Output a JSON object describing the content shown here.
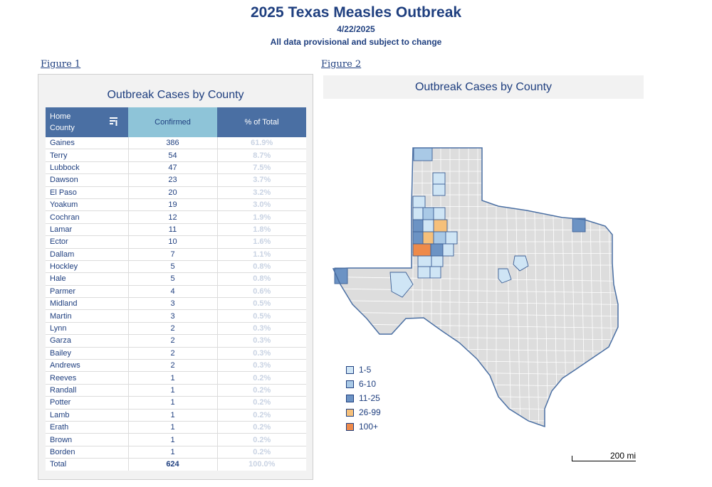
{
  "header": {
    "title": "2025 Texas Measles Outbreak",
    "date": "4/22/2025",
    "note": "All data provisional and subject to change"
  },
  "figure1": {
    "link": "Figure 1",
    "panel_title": "Outbreak Cases by County",
    "columns": {
      "county_line1": "Home",
      "county_line2": "County",
      "confirmed": "Confirmed",
      "pct": "% of Total"
    },
    "rows": [
      {
        "county": "Gaines",
        "confirmed": "386",
        "pct": "61.9%"
      },
      {
        "county": "Terry",
        "confirmed": "54",
        "pct": "8.7%"
      },
      {
        "county": "Lubbock",
        "confirmed": "47",
        "pct": "7.5%"
      },
      {
        "county": "Dawson",
        "confirmed": "23",
        "pct": "3.7%"
      },
      {
        "county": "El Paso",
        "confirmed": "20",
        "pct": "3.2%"
      },
      {
        "county": "Yoakum",
        "confirmed": "19",
        "pct": "3.0%"
      },
      {
        "county": "Cochran",
        "confirmed": "12",
        "pct": "1.9%"
      },
      {
        "county": "Lamar",
        "confirmed": "11",
        "pct": "1.8%"
      },
      {
        "county": "Ector",
        "confirmed": "10",
        "pct": "1.6%"
      },
      {
        "county": "Dallam",
        "confirmed": "7",
        "pct": "1.1%"
      },
      {
        "county": "Hockley",
        "confirmed": "5",
        "pct": "0.8%"
      },
      {
        "county": "Hale",
        "confirmed": "5",
        "pct": "0.8%"
      },
      {
        "county": "Parmer",
        "confirmed": "4",
        "pct": "0.6%"
      },
      {
        "county": "Midland",
        "confirmed": "3",
        "pct": "0.5%"
      },
      {
        "county": "Martin",
        "confirmed": "3",
        "pct": "0.5%"
      },
      {
        "county": "Lynn",
        "confirmed": "2",
        "pct": "0.3%"
      },
      {
        "county": "Garza",
        "confirmed": "2",
        "pct": "0.3%"
      },
      {
        "county": "Bailey",
        "confirmed": "2",
        "pct": "0.3%"
      },
      {
        "county": "Andrews",
        "confirmed": "2",
        "pct": "0.3%"
      },
      {
        "county": "Reeves",
        "confirmed": "1",
        "pct": "0.2%"
      },
      {
        "county": "Randall",
        "confirmed": "1",
        "pct": "0.2%"
      },
      {
        "county": "Potter",
        "confirmed": "1",
        "pct": "0.2%"
      },
      {
        "county": "Lamb",
        "confirmed": "1",
        "pct": "0.2%"
      },
      {
        "county": "Erath",
        "confirmed": "1",
        "pct": "0.2%"
      },
      {
        "county": "Brown",
        "confirmed": "1",
        "pct": "0.2%"
      },
      {
        "county": "Borden",
        "confirmed": "1",
        "pct": "0.2%"
      }
    ],
    "total": {
      "county": "Total",
      "confirmed": "624",
      "pct": "100.0%"
    }
  },
  "figure2": {
    "link": "Figure 2",
    "panel_title": "Outbreak Cases by County",
    "legend": [
      {
        "label": "1-5",
        "color": "#cfe5f5"
      },
      {
        "label": "6-10",
        "color": "#a9c9e6"
      },
      {
        "label": "11-25",
        "color": "#6c93c4"
      },
      {
        "label": "26-99",
        "color": "#f6c07a"
      },
      {
        "label": "100+",
        "color": "#ee8a4a"
      }
    ],
    "scale_label": "200 mi",
    "colors": {
      "state_fill": "#dddddd",
      "county_line": "#ffffff",
      "state_outline": "#4a6fa3"
    },
    "icons": {
      "sort": "sort-icon"
    }
  }
}
